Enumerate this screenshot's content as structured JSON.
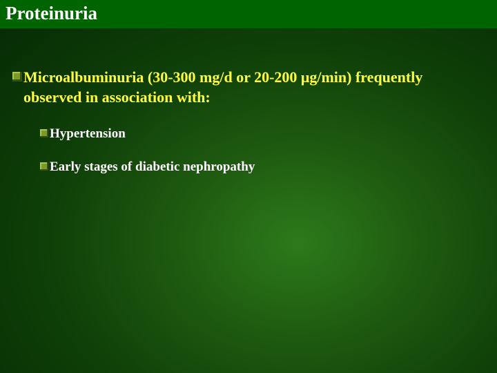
{
  "slide": {
    "title": "Proteinuria",
    "title_color": "#ffffff",
    "title_bg": "#006400",
    "title_fontsize": 27,
    "main_bullet": {
      "text": "Microalbuminuria (30-300 mg/d or 20-200 μg/min) frequently observed in association with:",
      "color": "#ffff40",
      "fontsize": 22,
      "bullet_color": "#7a9a2a"
    },
    "sub_bullets": [
      {
        "text": "Hypertension",
        "color": "#ffffff",
        "fontsize": 19
      },
      {
        "text": "Early stages of diabetic nephropathy",
        "color": "#ffffff",
        "fontsize": 19
      }
    ],
    "background_gradient": {
      "inner": "#2d7a1a",
      "outer": "#021802"
    }
  }
}
